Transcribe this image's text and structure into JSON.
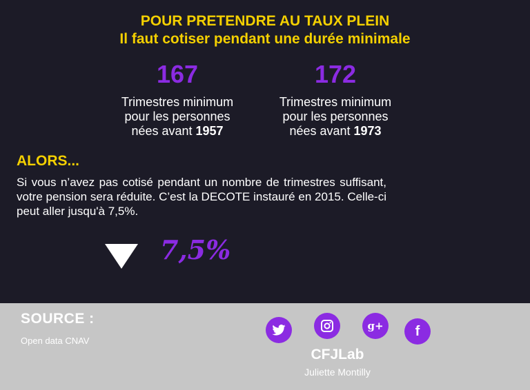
{
  "header": {
    "title_line1": "POUR PRETENDRE AU TAUX PLEIN",
    "title_line2": "Il faut cotiser pendant une durée minimale"
  },
  "stats": [
    {
      "number": "167",
      "desc_line1": "Trimestres minimum",
      "desc_line2": "pour les personnes",
      "desc_line3_prefix": "nées avant ",
      "year": "1957"
    },
    {
      "number": "172",
      "desc_line1": "Trimestres minimum",
      "desc_line2": "pour les personnes",
      "desc_line3_prefix": "nées avant ",
      "year": "1973"
    }
  ],
  "alors": {
    "heading": "ALORS...",
    "paragraph": "Si vous n’avez pas cotisé pendant un nombre de trimestres suffisant, votre pension sera réduite. C’est la DECOTE instauré en 2015. Celle-ci peut aller jusqu'à 7,5%."
  },
  "decote": {
    "value": "7,5%",
    "icon": "triangle-down-icon"
  },
  "footer": {
    "source_label": "SOURCE :",
    "source_value": "Open data CNAV",
    "social": [
      {
        "name": "twitter-icon"
      },
      {
        "name": "instagram-icon"
      },
      {
        "name": "google-plus-icon",
        "glyph": "g+"
      },
      {
        "name": "facebook-icon",
        "glyph": "f"
      }
    ],
    "brand_name": "CFJLab",
    "author": "Juliette Montilly"
  },
  "colors": {
    "background": "#1c1b27",
    "yellow": "#f4d000",
    "purple": "#8b2be2",
    "footer_bg": "#c6c6c6",
    "white": "#ffffff"
  }
}
